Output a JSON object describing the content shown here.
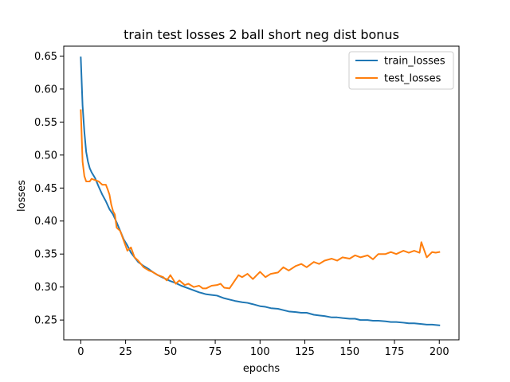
{
  "chart_data": {
    "type": "line",
    "title": "train test losses 2 ball short neg dist bonus",
    "xlabel": "epochs",
    "ylabel": "losses",
    "xlim": [
      -9.5,
      211
    ],
    "ylim": [
      0.22,
      0.665
    ],
    "xticks": [
      0,
      25,
      50,
      75,
      100,
      125,
      150,
      175,
      200
    ],
    "yticks": [
      0.25,
      0.3,
      0.35,
      0.4,
      0.45,
      0.5,
      0.55,
      0.6,
      0.65
    ],
    "ytick_labels": [
      "0.25",
      "0.30",
      "0.35",
      "0.40",
      "0.45",
      "0.50",
      "0.55",
      "0.60",
      "0.65"
    ],
    "grid": false,
    "legend_position": "top-right",
    "series": [
      {
        "name": "train_losses",
        "color": "#1f77b4",
        "x": [
          0,
          1,
          2,
          3,
          4,
          5,
          6,
          8,
          10,
          12,
          14,
          16,
          18,
          20,
          22,
          24,
          26,
          28,
          30,
          32,
          35,
          38,
          40,
          43,
          46,
          50,
          53,
          56,
          60,
          63,
          66,
          70,
          73,
          76,
          80,
          83,
          86,
          90,
          93,
          96,
          100,
          103,
          106,
          110,
          113,
          116,
          120,
          123,
          126,
          130,
          133,
          136,
          140,
          143,
          146,
          150,
          153,
          156,
          160,
          163,
          166,
          170,
          173,
          176,
          180,
          183,
          186,
          190,
          193,
          196,
          200
        ],
        "values": [
          0.648,
          0.575,
          0.535,
          0.505,
          0.49,
          0.48,
          0.474,
          0.465,
          0.452,
          0.44,
          0.43,
          0.418,
          0.41,
          0.398,
          0.385,
          0.372,
          0.363,
          0.352,
          0.345,
          0.338,
          0.332,
          0.327,
          0.323,
          0.318,
          0.314,
          0.309,
          0.306,
          0.302,
          0.298,
          0.295,
          0.292,
          0.289,
          0.288,
          0.287,
          0.283,
          0.281,
          0.279,
          0.277,
          0.276,
          0.274,
          0.271,
          0.27,
          0.268,
          0.267,
          0.265,
          0.263,
          0.262,
          0.261,
          0.261,
          0.258,
          0.257,
          0.256,
          0.254,
          0.254,
          0.253,
          0.252,
          0.252,
          0.25,
          0.25,
          0.249,
          0.249,
          0.248,
          0.247,
          0.247,
          0.246,
          0.245,
          0.245,
          0.244,
          0.243,
          0.243,
          0.242
        ]
      },
      {
        "name": "test_losses",
        "color": "#ff7f0e",
        "x": [
          0,
          1,
          2,
          3,
          4,
          5,
          6,
          8,
          10,
          12,
          14,
          15,
          16,
          17,
          18,
          19,
          20,
          22,
          24,
          26,
          28,
          30,
          32,
          35,
          38,
          40,
          43,
          46,
          48,
          50,
          53,
          55,
          58,
          60,
          63,
          66,
          68,
          70,
          73,
          76,
          78,
          80,
          83,
          86,
          88,
          90,
          93,
          96,
          100,
          103,
          106,
          110,
          113,
          116,
          120,
          123,
          126,
          130,
          133,
          136,
          140,
          143,
          146,
          150,
          153,
          156,
          160,
          163,
          166,
          170,
          173,
          176,
          180,
          183,
          186,
          189,
          190,
          193,
          196,
          198,
          200
        ],
        "values": [
          0.568,
          0.49,
          0.468,
          0.46,
          0.46,
          0.46,
          0.464,
          0.462,
          0.46,
          0.455,
          0.455,
          0.448,
          0.44,
          0.425,
          0.415,
          0.41,
          0.39,
          0.385,
          0.37,
          0.355,
          0.36,
          0.345,
          0.34,
          0.33,
          0.325,
          0.323,
          0.318,
          0.315,
          0.31,
          0.318,
          0.305,
          0.31,
          0.303,
          0.305,
          0.3,
          0.302,
          0.298,
          0.298,
          0.302,
          0.303,
          0.305,
          0.299,
          0.298,
          0.31,
          0.318,
          0.315,
          0.32,
          0.312,
          0.323,
          0.315,
          0.32,
          0.322,
          0.33,
          0.325,
          0.332,
          0.335,
          0.33,
          0.338,
          0.335,
          0.34,
          0.343,
          0.34,
          0.345,
          0.343,
          0.348,
          0.345,
          0.348,
          0.342,
          0.35,
          0.35,
          0.353,
          0.35,
          0.355,
          0.352,
          0.355,
          0.352,
          0.368,
          0.345,
          0.353,
          0.352,
          0.353
        ]
      }
    ]
  }
}
